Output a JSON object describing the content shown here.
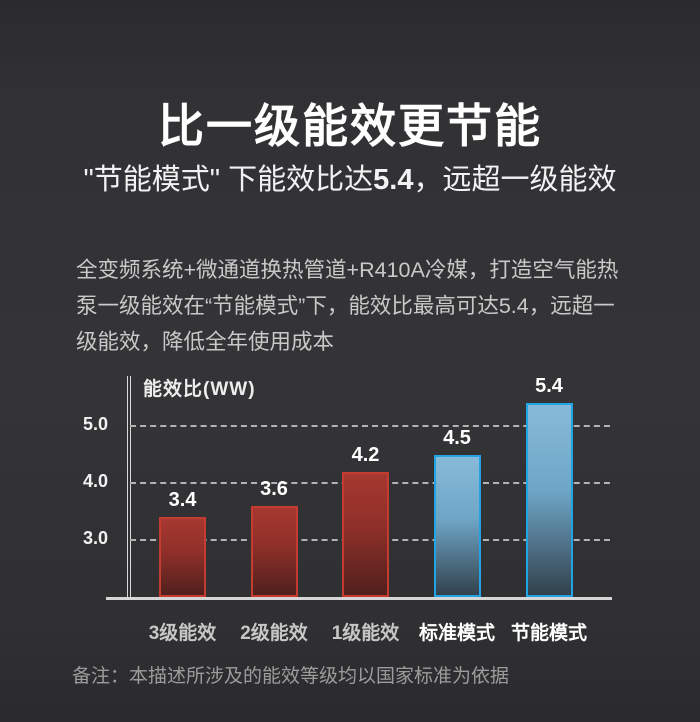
{
  "page": {
    "title": "比一级能效更节能",
    "subtitle": {
      "pre": "\"节能模式\" 下能效比达",
      "value": "5.4",
      "post": "，远超一级能效"
    },
    "intro_lines": [
      "全变频系统+微通道换热管道+R410A冷媒，打造空气能热",
      "泵一级能效在“节能模式”下，能效比最高可达5.4，远超一",
      "级能效，降低全年使用成本"
    ],
    "note": "备注：本描述所涉及的能效等级均以国家标准为依据"
  },
  "chart_data": {
    "type": "bar",
    "title": "能效比(WW)",
    "categories": [
      "3级能效",
      "2级能效",
      "1级能效",
      "标准模式",
      "节能模式"
    ],
    "values": [
      3.4,
      3.6,
      4.2,
      4.5,
      5.4
    ],
    "value_labels": [
      "3.4",
      "3.6",
      "4.2",
      "4.5",
      "5.4"
    ],
    "bar_styles": [
      "red",
      "red",
      "red",
      "blue",
      "blue"
    ],
    "yticks": [
      3.0,
      4.0,
      5.0
    ],
    "ylim": [
      2.0,
      5.8
    ],
    "grid": "horizontal-dashed",
    "legend": "none",
    "colors": {
      "red_border": "#c43b30",
      "red_fill_top": "#a63830",
      "red_fill_bottom": "#50201d",
      "blue_border": "#22a3e4",
      "blue_fill_top": "#87bad8",
      "blue_fill_bottom": "#32414d",
      "background": "#333336",
      "text": "#ffffff"
    }
  }
}
